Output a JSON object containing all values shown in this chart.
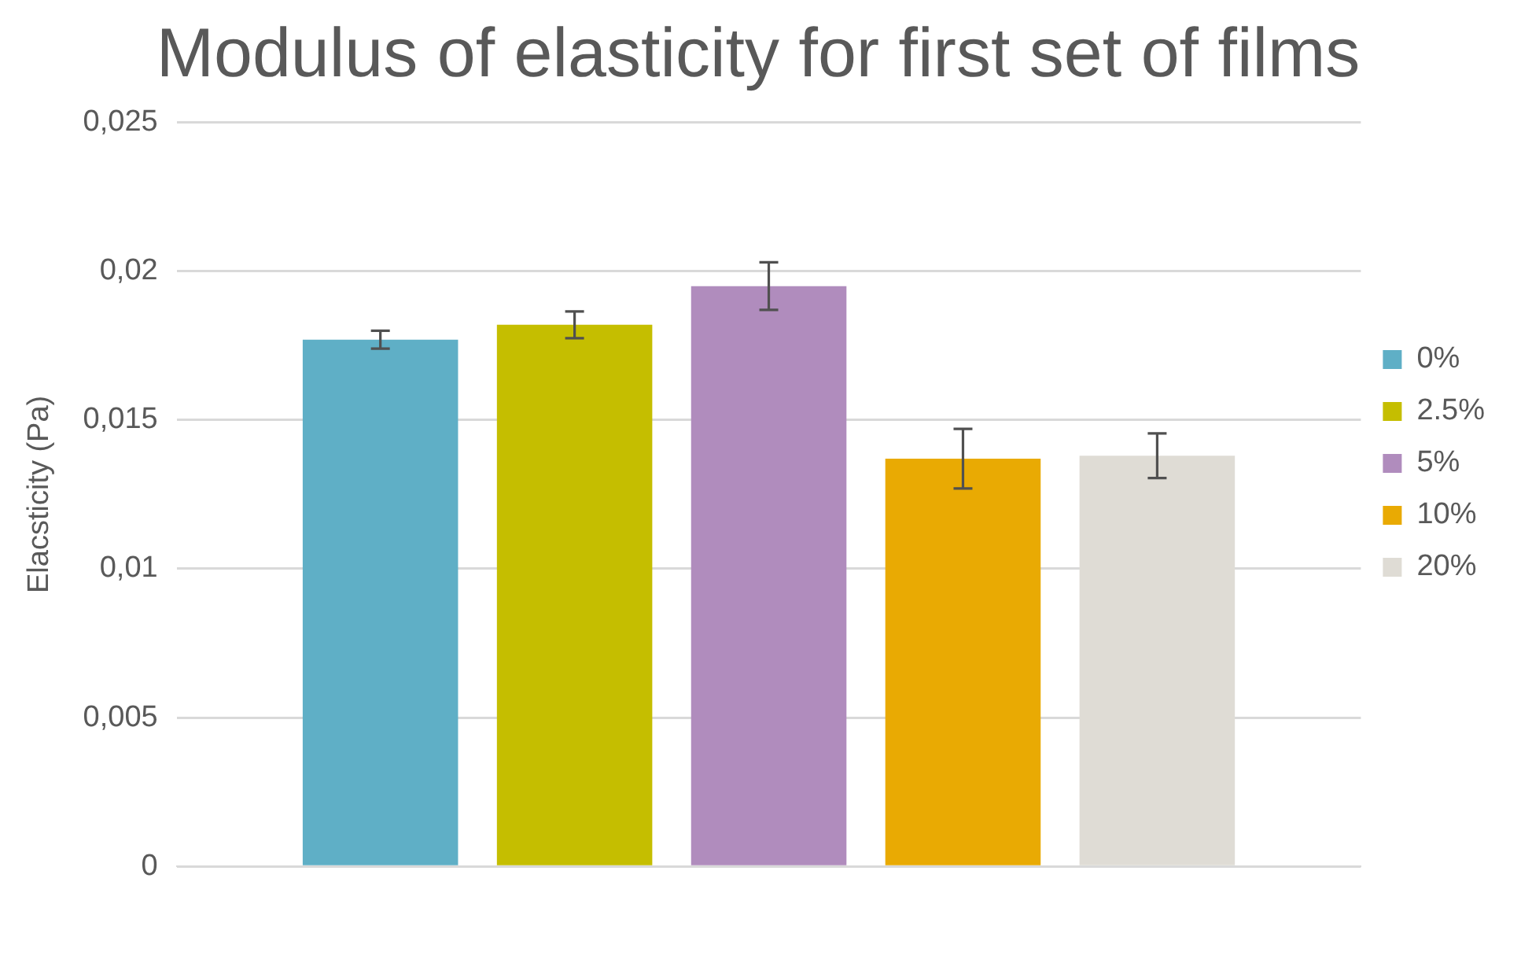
{
  "chart_data": {
    "type": "bar",
    "title": "Modulus of elasticity for first set of films",
    "ylabel": "Elacsticity (Pa)",
    "categories": [
      null
    ],
    "series": [
      {
        "name": "0%",
        "color": "#5fafc6",
        "values": [
          0.0177
        ],
        "errors": [
          0.0003
        ]
      },
      {
        "name": "2.5%",
        "color": "#c5be00",
        "values": [
          0.0182
        ],
        "errors": [
          0.00045
        ]
      },
      {
        "name": "5%",
        "color": "#b08cbd",
        "values": [
          0.0195
        ],
        "errors": [
          0.0008
        ]
      },
      {
        "name": "10%",
        "color": "#e9aa03",
        "values": [
          0.0137
        ],
        "errors": [
          0.001
        ]
      },
      {
        "name": "20%",
        "color": "#dfdcd5",
        "values": [
          0.0138
        ],
        "errors": [
          0.00075
        ]
      }
    ],
    "ylim": [
      0,
      0.025
    ],
    "yticks": [
      {
        "value": 0,
        "label": "0"
      },
      {
        "value": 0.005,
        "label": "0,005"
      },
      {
        "value": 0.01,
        "label": "0,01"
      },
      {
        "value": 0.015,
        "label": "0,015"
      },
      {
        "value": 0.02,
        "label": "0,02"
      },
      {
        "value": 0.025,
        "label": "0,025"
      }
    ],
    "grid": "y",
    "legend": "right"
  }
}
